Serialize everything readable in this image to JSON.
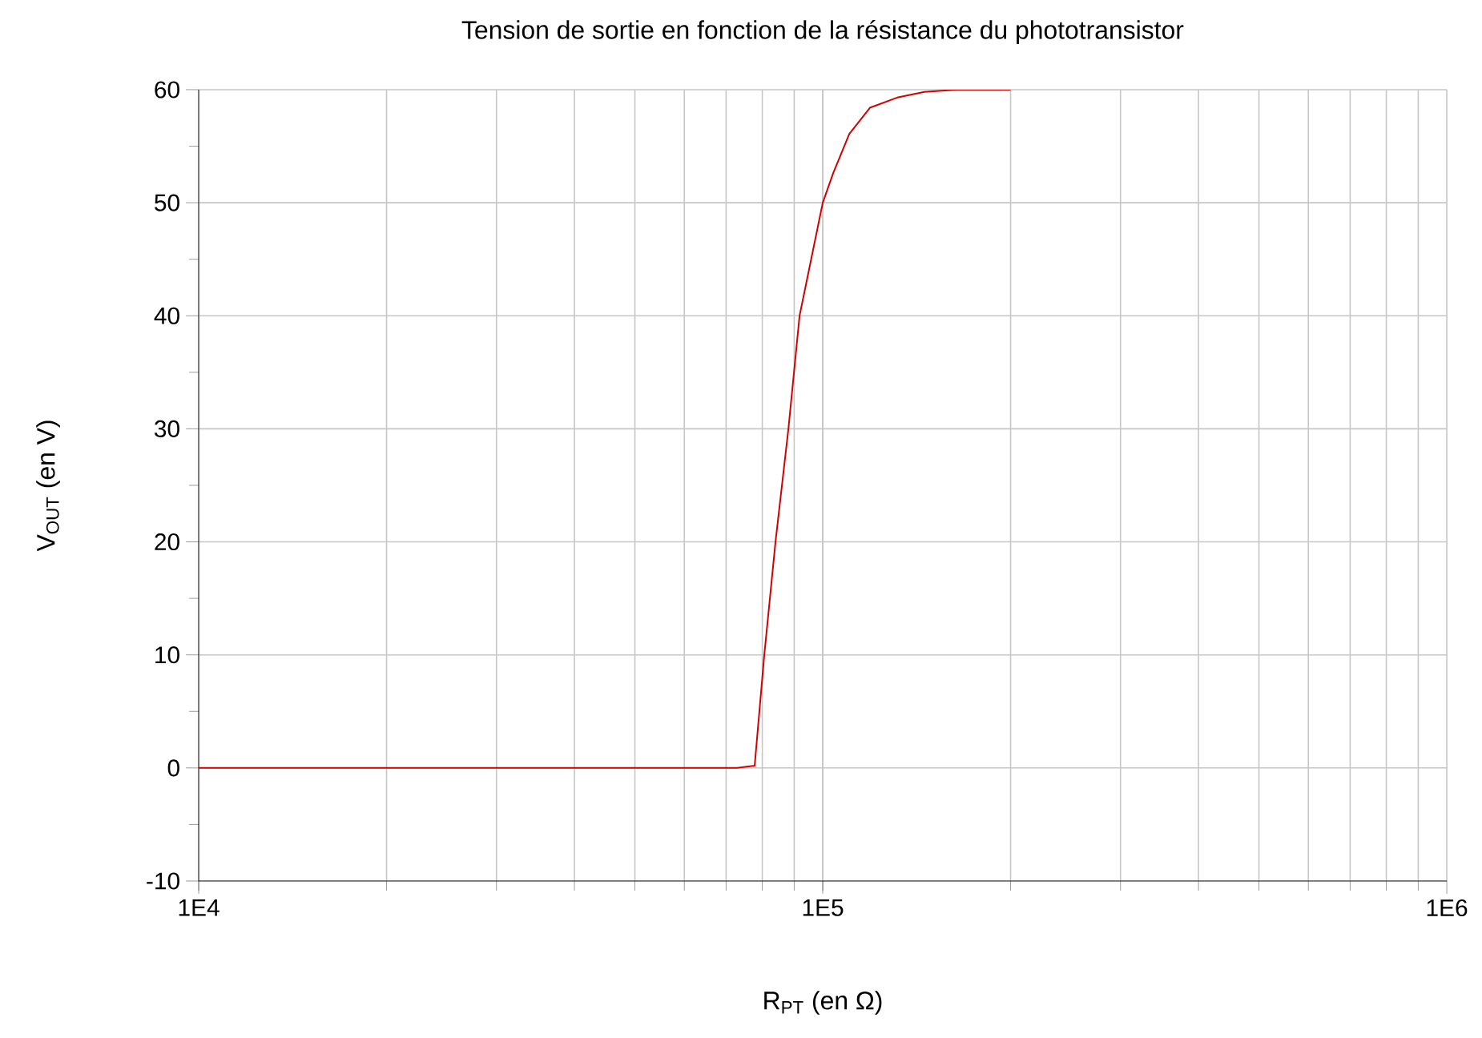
{
  "chart_data": {
    "type": "line",
    "title": "Tension de sortie en fonction de la résistance du phototransistor",
    "xlabel": "R$_{PT}$ (en Ω)",
    "ylabel": "V$_{OUT}$ (en V)",
    "log": "x",
    "grid": true,
    "line_style": "solid",
    "xlim": [
      10000,
      1000000
    ],
    "ylim": [
      -10,
      60
    ],
    "xticks": [
      {
        "value": 10000,
        "label": "1E4"
      },
      {
        "value": 100000,
        "label": "1E5"
      },
      {
        "value": 1000000,
        "label": "1E6"
      }
    ],
    "yticks": [
      -10,
      {
        "value": -5,
        "label": null
      },
      0,
      {
        "value": 5,
        "label": null
      },
      10,
      {
        "value": 15,
        "label": null
      },
      20,
      {
        "value": 25,
        "label": null
      },
      30,
      {
        "value": 35,
        "label": null
      },
      40,
      {
        "value": 45,
        "label": null
      },
      50,
      {
        "value": 55,
        "label": null
      },
      60
    ],
    "series": [
      {
        "color": "#d40000",
        "x": [
          10000,
          72900,
          77800,
          80600,
          84000,
          88100,
          91800,
          100000,
          103900,
          110300,
          119000,
          131600,
          145500,
          163800,
          200000
        ],
        "values": [
          0,
          0,
          0.2,
          10,
          20,
          30,
          40,
          50,
          52.6,
          56.1,
          58.4,
          59.3,
          59.8,
          60,
          60
        ]
      }
    ]
  }
}
